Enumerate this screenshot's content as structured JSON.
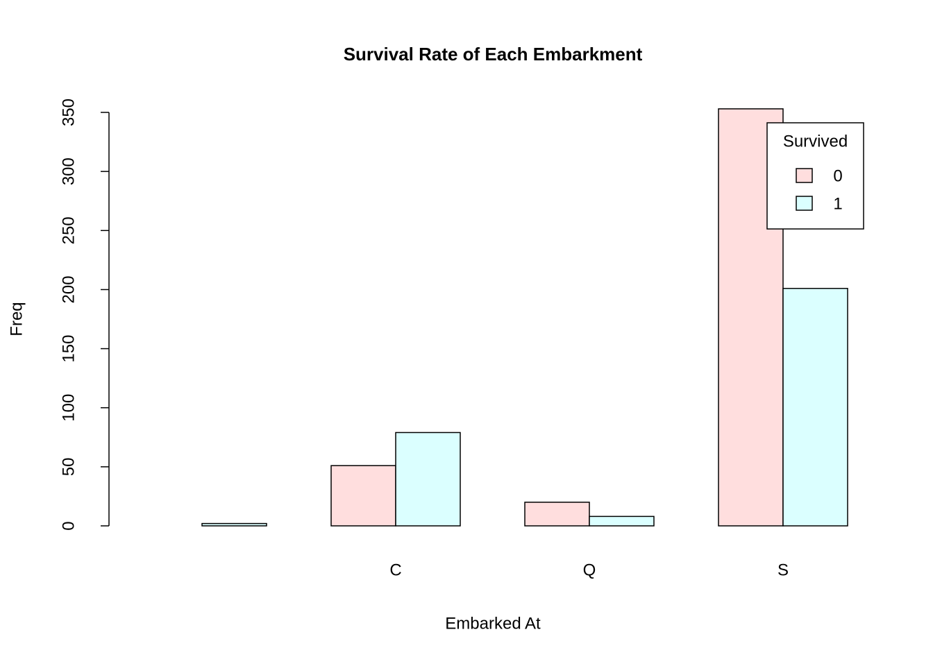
{
  "chart_data": {
    "type": "bar",
    "title": "Survival Rate of Each Embarkment",
    "x_label": "Embarked At",
    "y_label": "Freq",
    "categories": [
      null,
      "C",
      "Q",
      "S"
    ],
    "legend_title": "Survived",
    "series": [
      {
        "name": "0",
        "color": "#ffdede",
        "values": [
          0,
          51,
          20,
          353
        ]
      },
      {
        "name": "1",
        "color": "#dbffff",
        "values": [
          2,
          79,
          8,
          201
        ]
      }
    ],
    "ylim": [
      0,
      350
    ],
    "yticks": [
      0,
      50,
      100,
      150,
      200,
      250,
      300,
      350
    ],
    "legend_position": "top-right"
  }
}
